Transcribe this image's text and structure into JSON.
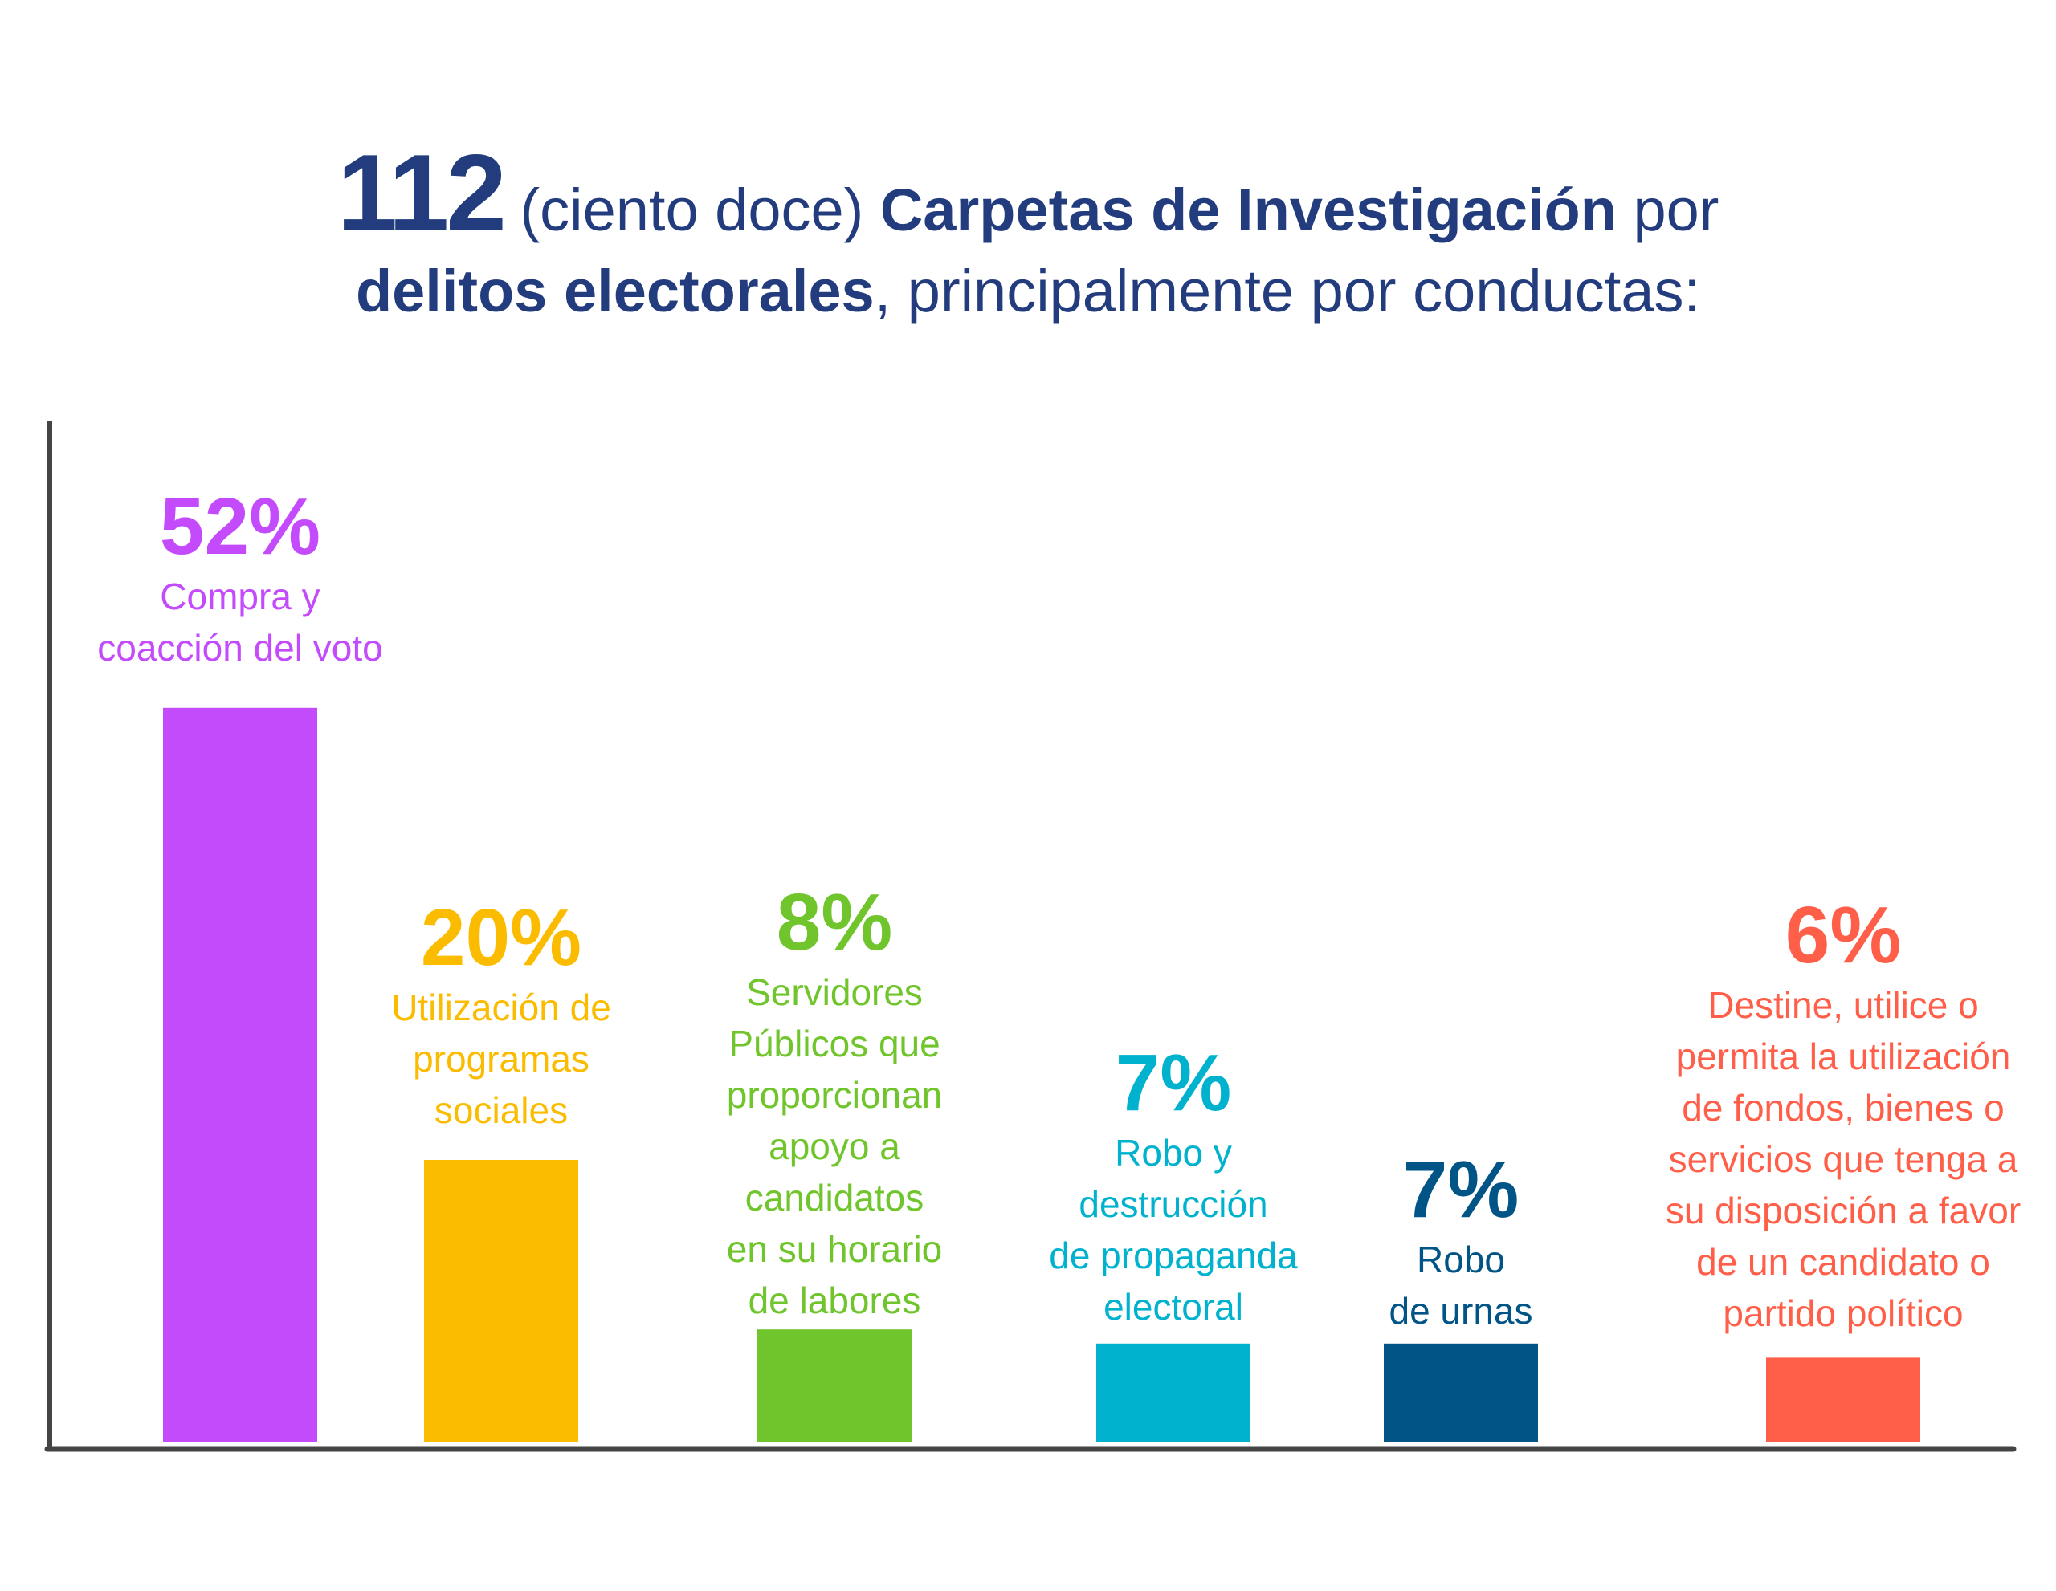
{
  "title": {
    "number": "112",
    "number_words": "(ciento doce)",
    "bold1": "Carpetas de Investigación",
    "after1": " por",
    "bold2": "delitos electorales",
    "after2": ", principalmente por conductas:",
    "color": "#233c7d"
  },
  "chart_data": {
    "type": "bar",
    "categories": [
      "Compra y\ncoacción del voto",
      "Utilización de\nprogramas\nsociales",
      "Servidores\nPúblicos que\nproporcionan\napoyo a\ncandidatos\nen su horario\nde labores",
      "Robo y\ndestrucción\nde propaganda\nelectoral",
      "Robo\nde urnas",
      "Destine, utilice o\npermita la utilización\nde fondos, bienes o\nservicios que tenga a\nsu disposición a favor\nde un candidato o\npartido político"
    ],
    "values": [
      52,
      20,
      8,
      7,
      7,
      6
    ],
    "value_labels": [
      "52%",
      "20%",
      "8%",
      "7%",
      "7%",
      "6%"
    ],
    "colors": [
      "#c44bfc",
      "#fbbc00",
      "#6fc52b",
      "#00b2ce",
      "#005486",
      "#ff5e48"
    ],
    "axis_color": "#444444",
    "grid": false,
    "xlabel": "",
    "ylabel": ""
  }
}
